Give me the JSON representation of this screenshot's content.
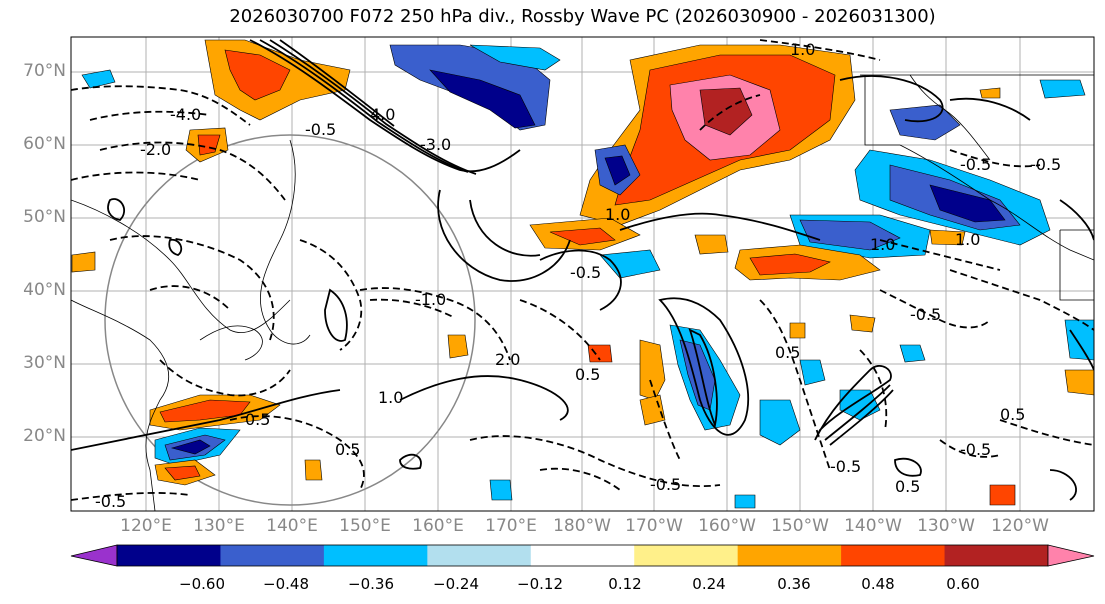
{
  "title": "2026030700 F072 250 hPa div., Rossby Wave PC (2026030900 - 2026031300)",
  "lat_labels": [
    "70°N",
    "60°N",
    "50°N",
    "40°N",
    "30°N",
    "20°N"
  ],
  "lon_labels": [
    "120°E",
    "130°E",
    "140°E",
    "150°E",
    "160°E",
    "170°E",
    "180°W",
    "170°W",
    "160°W",
    "150°W",
    "140°W",
    "130°W",
    "120°W"
  ],
  "colorbar": {
    "ticks": [
      "−0.60",
      "−0.48",
      "−0.36",
      "−0.24",
      "−0.12",
      "0.12",
      "0.24",
      "0.36",
      "0.48",
      "0.60"
    ],
    "colors": [
      "#9a32cd",
      "#00008b",
      "#3a5fcd",
      "#00bfff",
      "#b2dfee",
      "#ffffff",
      "#fff08a",
      "#ffa500",
      "#ff4500",
      "#b22222",
      "#ff82ab"
    ]
  },
  "contour_labels": [
    "-4.0",
    "-2.0",
    "-3.0",
    "-0.5",
    "-1.0",
    "0.5",
    "1.0",
    "2.0",
    "4.0"
  ]
}
